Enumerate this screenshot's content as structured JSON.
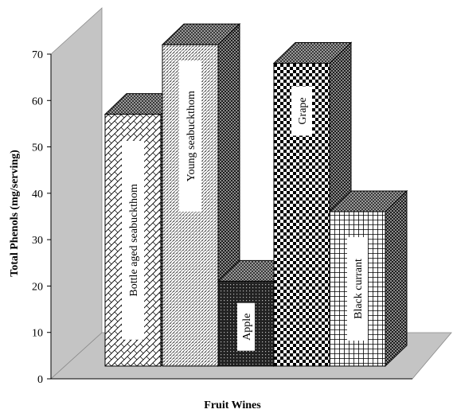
{
  "chart_data": {
    "type": "bar",
    "style": "3d",
    "title": "",
    "xlabel": "Fruit Wines",
    "ylabel": "Total Phenols (mg/serving)",
    "ylim": [
      0,
      70
    ],
    "yticks": [
      "0",
      "10",
      "20",
      "30",
      "40",
      "50",
      "60",
      "70"
    ],
    "grid": false,
    "legend": "none",
    "categories": [
      "Bottle aged seabuckthom",
      "Young seabuckthom",
      "Apple",
      "Grape",
      "Black currant"
    ],
    "values": [
      56,
      71,
      20,
      67,
      35
    ],
    "patterns": [
      "diagonal-brick",
      "fine-dots",
      "dark-dots",
      "checkerboard",
      "grid"
    ],
    "colors": {
      "wall": "#c4c4c4",
      "floor": "#c4c4c4",
      "bar_outline": "#000000"
    }
  }
}
